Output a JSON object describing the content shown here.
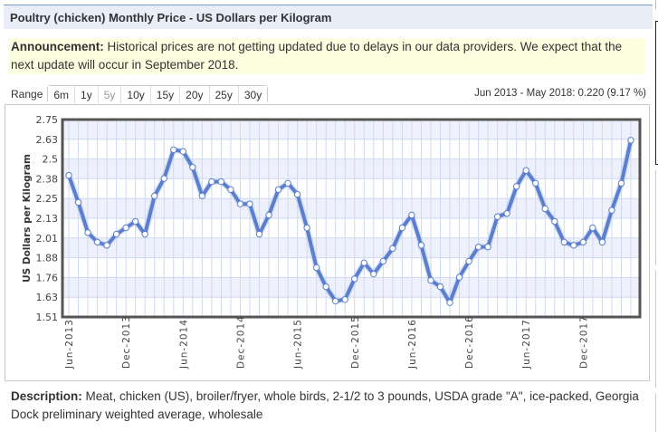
{
  "header": {
    "title": "Poultry (chicken) Monthly Price - US Dollars per Kilogram"
  },
  "announcement": {
    "label": "Announcement:",
    "text": " Historical prices are not getting updated due to delays in our data providers. We expect that the next update will occur in September 2018."
  },
  "range": {
    "label": "Range",
    "buttons": [
      {
        "label": "6m",
        "disabled": false
      },
      {
        "label": "1y",
        "disabled": false
      },
      {
        "label": "5y",
        "disabled": true
      },
      {
        "label": "10y",
        "disabled": false
      },
      {
        "label": "15y",
        "disabled": false
      },
      {
        "label": "20y",
        "disabled": false
      },
      {
        "label": "25y",
        "disabled": false
      },
      {
        "label": "30y",
        "disabled": false
      }
    ]
  },
  "change_summary": "Jun 2013 - May 2018: 0.220 (9.17 %)",
  "description": {
    "label": "Description:",
    "text": " Meat, chicken (US), broiler/fryer, whole birds, 2-1/2 to 3 pounds, USDA grade \"A\", ice-packed, Georgia Dock preliminary weighted average, wholesale"
  },
  "colors": {
    "line": "#5b7fcf",
    "band": "#eef1fb",
    "grid": "#cdd9f0",
    "frame": "#555555",
    "header_bg": "#e8edf8",
    "announce_bg": "#fdfde0"
  },
  "chart_data": {
    "type": "line",
    "title": "",
    "xlabel": "",
    "ylabel": "US Dollars per Kilogram",
    "ylim": [
      1.51,
      2.75
    ],
    "yticks": [
      "2.75",
      "2.63",
      "2.5",
      "2.38",
      "2.25",
      "2.13",
      "2.01",
      "1.88",
      "1.76",
      "1.63",
      "1.51"
    ],
    "xtick_labels": [
      "Jun-2013",
      "Dec-2013",
      "Jun-2014",
      "Dec-2014",
      "Jun-2015",
      "Dec-2015",
      "Jun-2016",
      "Dec-2016",
      "Jun-2017",
      "Dec-2017"
    ],
    "grid": true,
    "x": [
      "Jun-2013",
      "Jul-2013",
      "Aug-2013",
      "Sep-2013",
      "Oct-2013",
      "Nov-2013",
      "Dec-2013",
      "Jan-2014",
      "Feb-2014",
      "Mar-2014",
      "Apr-2014",
      "May-2014",
      "Jun-2014",
      "Jul-2014",
      "Aug-2014",
      "Sep-2014",
      "Oct-2014",
      "Nov-2014",
      "Dec-2014",
      "Jan-2015",
      "Feb-2015",
      "Mar-2015",
      "Apr-2015",
      "May-2015",
      "Jun-2015",
      "Jul-2015",
      "Aug-2015",
      "Sep-2015",
      "Oct-2015",
      "Nov-2015",
      "Dec-2015",
      "Jan-2016",
      "Feb-2016",
      "Mar-2016",
      "Apr-2016",
      "May-2016",
      "Jun-2016",
      "Jul-2016",
      "Aug-2016",
      "Sep-2016",
      "Oct-2016",
      "Nov-2016",
      "Dec-2016",
      "Jan-2017",
      "Feb-2017",
      "Mar-2017",
      "Apr-2017",
      "May-2017",
      "Jun-2017",
      "Jul-2017",
      "Aug-2017",
      "Sep-2017",
      "Oct-2017",
      "Nov-2017",
      "Dec-2017",
      "Jan-2018",
      "Feb-2018",
      "Mar-2018",
      "Apr-2018",
      "May-2018"
    ],
    "series": [
      {
        "name": "Poultry (chicken) price",
        "values": [
          2.4,
          2.23,
          2.04,
          1.98,
          1.96,
          2.03,
          2.07,
          2.11,
          2.03,
          2.27,
          2.38,
          2.56,
          2.55,
          2.45,
          2.27,
          2.36,
          2.36,
          2.31,
          2.22,
          2.22,
          2.03,
          2.15,
          2.31,
          2.35,
          2.28,
          2.07,
          1.82,
          1.7,
          1.61,
          1.62,
          1.75,
          1.85,
          1.78,
          1.86,
          1.94,
          2.07,
          2.15,
          1.96,
          1.74,
          1.7,
          1.6,
          1.76,
          1.86,
          1.95,
          1.95,
          2.14,
          2.16,
          2.33,
          2.43,
          2.35,
          2.19,
          2.11,
          1.98,
          1.96,
          1.98,
          2.07,
          1.98,
          2.18,
          2.35,
          2.62
        ]
      }
    ]
  }
}
